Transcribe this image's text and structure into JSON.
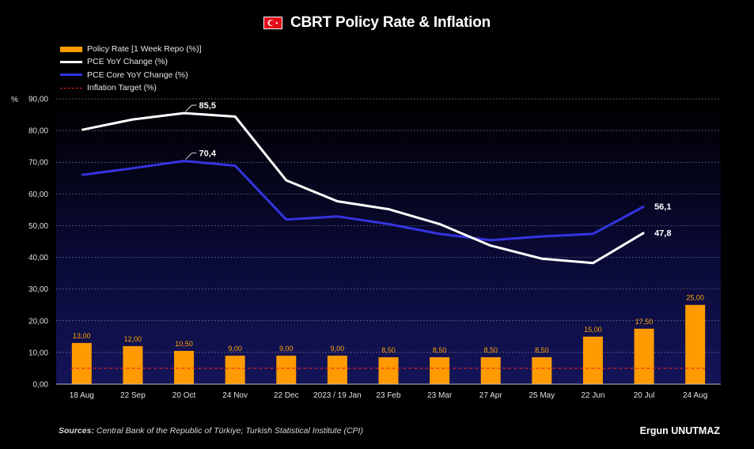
{
  "header": {
    "title": "CBRT Policy Rate & Inflation",
    "flag_icon": "turkey-flag-icon"
  },
  "legend": [
    {
      "label": "Policy Rate [1 Week Repo (%)]",
      "style": "bar",
      "color": "#ff9b00"
    },
    {
      "label": "PCE YoY Change (%)",
      "style": "line",
      "color": "#ffffff"
    },
    {
      "label": "PCE Core YoY Change (%)",
      "style": "line",
      "color": "#3434e0"
    },
    {
      "label": "Inflation Target (%)",
      "style": "dashed",
      "color": "#e02020"
    }
  ],
  "chart_data": {
    "type": "bar+line",
    "ylabel": "%",
    "ylim": [
      0,
      90
    ],
    "ytick_step": 10,
    "ytick_labels": [
      "0,00",
      "10,00",
      "20,00",
      "30,00",
      "40,00",
      "50,00",
      "60,00",
      "70,00",
      "80,00",
      "90,00"
    ],
    "categories": [
      "18 Aug",
      "22 Sep",
      "20 Oct",
      "24 Nov",
      "22 Dec",
      "2023 / 19 Jan",
      "23 Feb",
      "23 Mar",
      "27 Apr",
      "25 May",
      "22 Jun",
      "20 Jul",
      "24 Aug"
    ],
    "series": [
      {
        "name": "Policy Rate [1 Week Repo (%)]",
        "kind": "bar",
        "color": "#ff9b00",
        "values": [
          13.0,
          12.0,
          10.5,
          9.0,
          9.0,
          9.0,
          8.5,
          8.5,
          8.5,
          8.5,
          15.0,
          17.5,
          25.0
        ],
        "labels": [
          "13,00",
          "12,00",
          "10,50",
          "9,00",
          "9,00",
          "9,00",
          "8,50",
          "8,50",
          "8,50",
          "8,50",
          "15,00",
          "17,50",
          "25,00"
        ]
      },
      {
        "name": "PCE YoY Change (%)",
        "kind": "line",
        "color": "#ffffff",
        "values": [
          80.2,
          83.5,
          85.5,
          84.4,
          64.3,
          57.7,
          55.2,
          50.5,
          43.7,
          39.6,
          38.2,
          47.8,
          null
        ]
      },
      {
        "name": "PCE Core YoY Change (%)",
        "kind": "line",
        "color": "#3434e0",
        "values": [
          66.0,
          68.1,
          70.4,
          68.9,
          51.9,
          52.9,
          50.5,
          47.4,
          45.4,
          46.6,
          47.4,
          56.1,
          null
        ]
      },
      {
        "name": "Inflation Target (%)",
        "kind": "dashed",
        "color": "#e02020",
        "values": [
          5,
          5,
          5,
          5,
          5,
          5,
          5,
          5,
          5,
          5,
          5,
          5,
          5
        ]
      }
    ],
    "annotations": [
      {
        "series": 1,
        "index": 2,
        "text": "85,5",
        "leader": true
      },
      {
        "series": 2,
        "index": 2,
        "text": "70,4",
        "leader": true
      },
      {
        "series": 2,
        "index": 11,
        "text": "56,1",
        "leader": false
      },
      {
        "series": 1,
        "index": 11,
        "text": "47,8",
        "leader": false
      }
    ],
    "grid": "horizontal-dashed"
  },
  "footer": {
    "sources_label": "Sources:",
    "sources_text": " Central Bank of the Republic of Türkiye; Turkish Statistical Institute (CPI)",
    "author": "Ergun UNUTMAZ"
  }
}
